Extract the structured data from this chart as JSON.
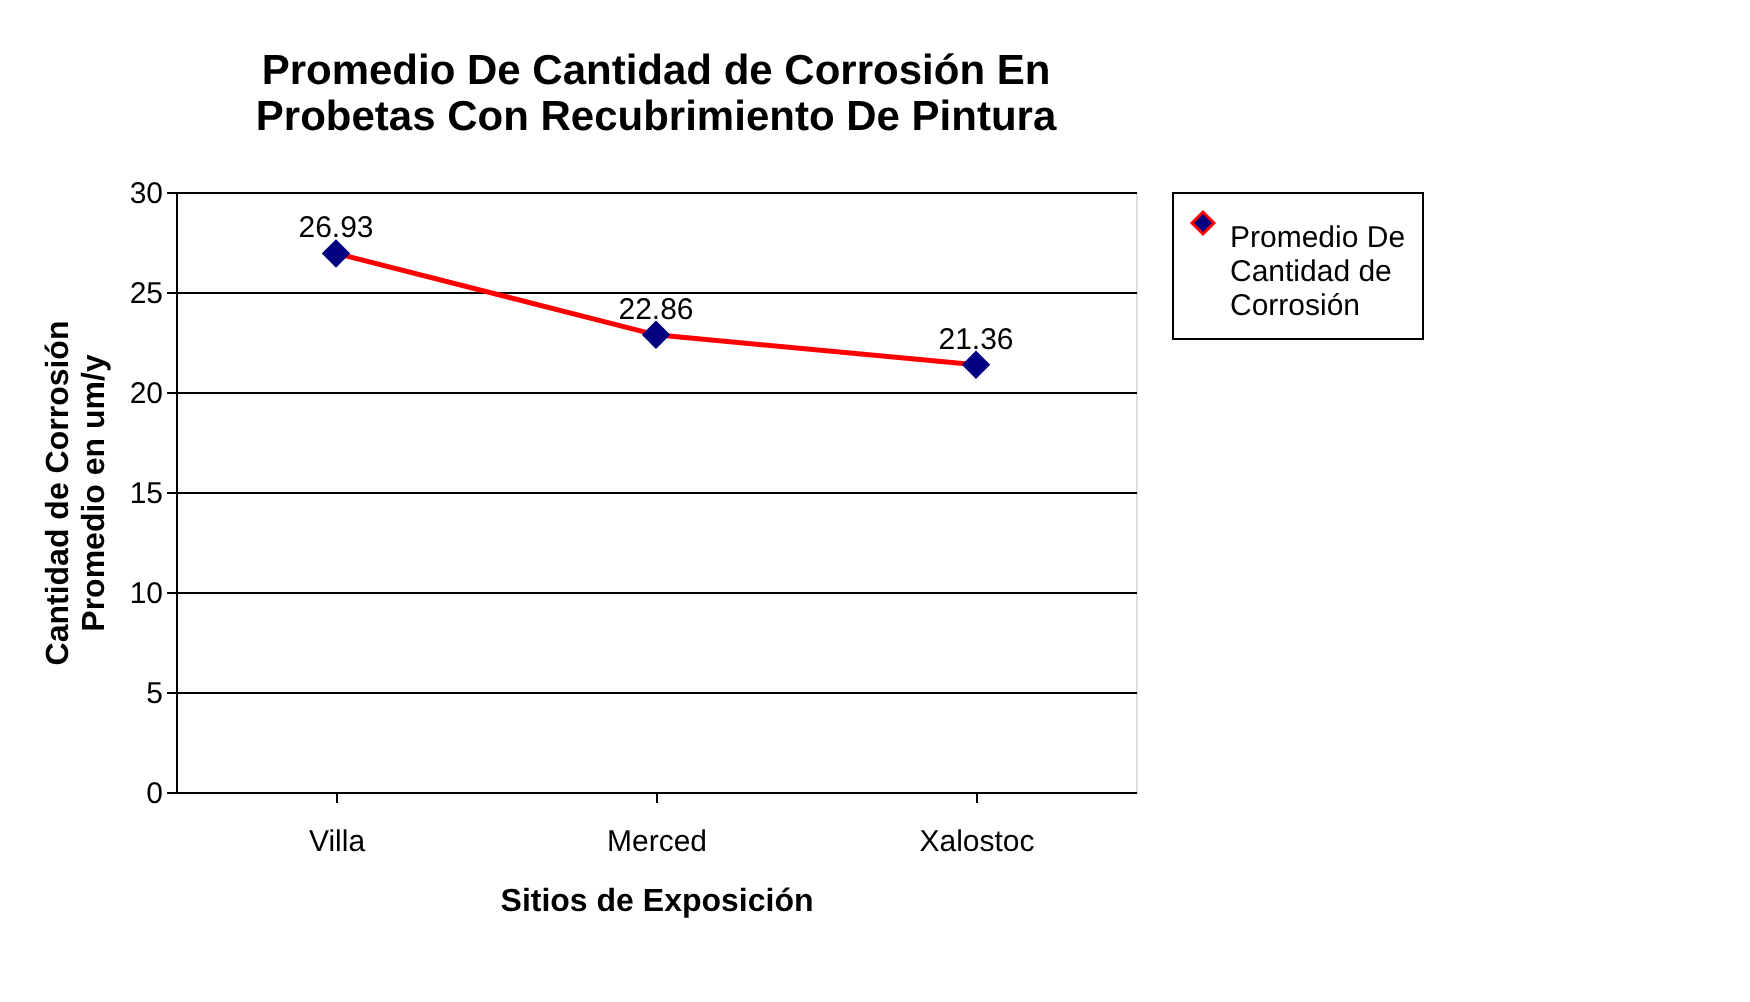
{
  "chart_data": {
    "type": "line",
    "title": "Promedio De Cantidad de Corrosión En Probetas Con Recubrimiento De Pintura",
    "xlabel": "Sitios de Exposición",
    "ylabel": "Cantidad de Corrosión Promedio en um/y",
    "categories": [
      "Villa",
      "Merced",
      "Xalostoc"
    ],
    "series": [
      {
        "name": "Promedio De Cantidad de Corrosión",
        "color": "#ff0000",
        "values": [
          26.93,
          22.86,
          21.36
        ]
      }
    ],
    "ylim": [
      0,
      30
    ],
    "yticks": [
      0,
      5,
      10,
      15,
      20,
      25,
      30
    ],
    "grid": "y",
    "legend": "right",
    "marker": "diamond",
    "line_style": "solid",
    "data_labels": true
  }
}
